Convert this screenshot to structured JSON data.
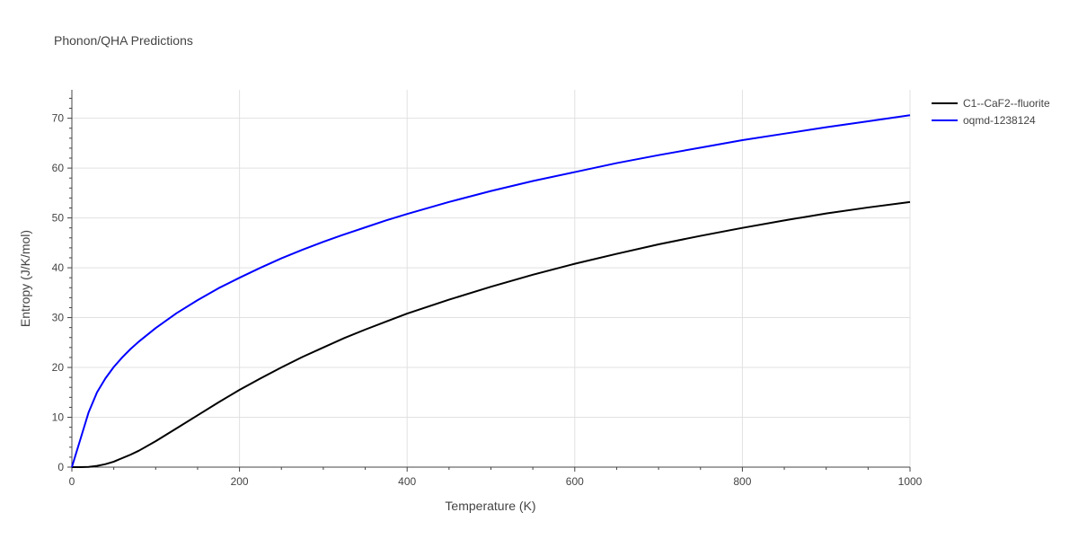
{
  "chart_data": {
    "type": "line",
    "title": "Phonon/QHA Predictions",
    "xlabel": "Temperature (K)",
    "ylabel": "Entropy (J/K/mol)",
    "xlim": [
      0,
      1000
    ],
    "ylim": [
      0,
      75.7
    ],
    "x_ticks": [
      0,
      200,
      400,
      600,
      800,
      1000
    ],
    "y_ticks": [
      0,
      10,
      20,
      30,
      40,
      50,
      60,
      70
    ],
    "grid": true,
    "legend_position": "top-right",
    "series": [
      {
        "name": "C1--CaF2--fluorite",
        "color": "#000000",
        "x": [
          0,
          10,
          20,
          30,
          40,
          50,
          60,
          70,
          80,
          100,
          125,
          150,
          175,
          200,
          225,
          250,
          275,
          300,
          325,
          350,
          375,
          400,
          450,
          500,
          550,
          600,
          650,
          700,
          750,
          800,
          850,
          900,
          950,
          1000
        ],
        "y": [
          0,
          0,
          0.05,
          0.25,
          0.6,
          1.1,
          1.8,
          2.5,
          3.3,
          5.2,
          7.8,
          10.4,
          13.0,
          15.5,
          17.8,
          20.0,
          22.1,
          24.0,
          25.9,
          27.6,
          29.2,
          30.8,
          33.6,
          36.2,
          38.6,
          40.8,
          42.8,
          44.7,
          46.4,
          48.0,
          49.5,
          50.9,
          52.1,
          53.2
        ]
      },
      {
        "name": "oqmd-1238124",
        "color": "#0000ff",
        "x": [
          0,
          10,
          20,
          30,
          40,
          50,
          60,
          70,
          80,
          100,
          125,
          150,
          175,
          200,
          225,
          250,
          275,
          300,
          325,
          350,
          375,
          400,
          450,
          500,
          550,
          600,
          650,
          700,
          750,
          800,
          850,
          900,
          950,
          1000
        ],
        "y": [
          0,
          5.5,
          11.0,
          15.0,
          17.8,
          20.1,
          22.0,
          23.7,
          25.2,
          27.9,
          30.9,
          33.5,
          35.9,
          38.0,
          40.0,
          41.9,
          43.6,
          45.2,
          46.7,
          48.1,
          49.5,
          50.8,
          53.2,
          55.4,
          57.4,
          59.2,
          61.0,
          62.6,
          64.1,
          65.6,
          66.9,
          68.2,
          69.4,
          70.6
        ]
      }
    ]
  }
}
